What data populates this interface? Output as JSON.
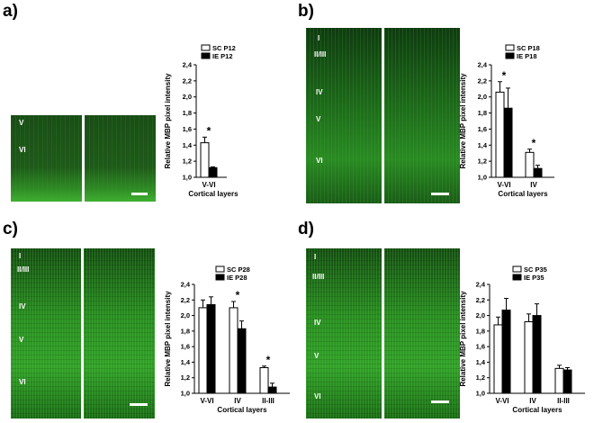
{
  "panels": [
    {
      "letter": "a)",
      "layers": [
        "V",
        "VI"
      ],
      "chart_data": {
        "type": "bar",
        "ylabel": "Relative MBP pixel intensity",
        "xlabel": "Cortical layers",
        "categories": [
          "V-VI"
        ],
        "ylim": [
          1.0,
          2.4
        ],
        "yticks": [
          "1,0",
          "1,2",
          "1,4",
          "1,6",
          "1,8",
          "2,0",
          "2,2",
          "2,4"
        ],
        "series": [
          {
            "name": "SC P12",
            "values": [
              1.43
            ],
            "errors": [
              0.07
            ],
            "color": "#ffffff"
          },
          {
            "name": "IE P12",
            "values": [
              1.12
            ],
            "errors": [
              0.01
            ],
            "color": "#000000"
          }
        ],
        "significance": [
          "*"
        ],
        "legend": "top"
      }
    },
    {
      "letter": "b)",
      "layers": [
        "I",
        "II/III",
        "IV",
        "V",
        "VI"
      ],
      "chart_data": {
        "type": "bar",
        "ylabel": "Relative MBP pixel intensity",
        "xlabel": "Cortical layers",
        "categories": [
          "V-VI",
          "IV"
        ],
        "ylim": [
          1.0,
          2.4
        ],
        "yticks": [
          "1,0",
          "1,2",
          "1,4",
          "1,6",
          "1,8",
          "2,0",
          "2,2",
          "2,4"
        ],
        "series": [
          {
            "name": "SC P18",
            "values": [
              2.06,
              1.31
            ],
            "errors": [
              0.13,
              0.04
            ],
            "color": "#ffffff"
          },
          {
            "name": "IE P18",
            "values": [
              1.86,
              1.11
            ],
            "errors": [
              0.25,
              0.04
            ],
            "color": "#000000"
          }
        ],
        "significance": [
          "*",
          "*"
        ],
        "legend": "top"
      }
    },
    {
      "letter": "c)",
      "layers": [
        "I",
        "II/III",
        "IV",
        "V",
        "VI"
      ],
      "chart_data": {
        "type": "bar",
        "ylabel": "Relative MBP pixel intensity",
        "xlabel": "Cortical layers",
        "categories": [
          "V-VI",
          "IV",
          "II-III"
        ],
        "ylim": [
          1.0,
          2.4
        ],
        "yticks": [
          "1,0",
          "1,2",
          "1,4",
          "1,6",
          "1,8",
          "2,0",
          "2,2",
          "2,4"
        ],
        "series": [
          {
            "name": "SC P28",
            "values": [
              2.1,
              2.1,
              1.33
            ],
            "errors": [
              0.1,
              0.08,
              0.02
            ],
            "color": "#ffffff"
          },
          {
            "name": "IE P28",
            "values": [
              2.14,
              1.83,
              1.08
            ],
            "errors": [
              0.1,
              0.1,
              0.05
            ],
            "color": "#000000"
          }
        ],
        "significance": [
          "",
          "*",
          "*"
        ],
        "legend": "top"
      }
    },
    {
      "letter": "d)",
      "layers": [
        "I",
        "II/III",
        "IV",
        "V",
        "VI"
      ],
      "chart_data": {
        "type": "bar",
        "ylabel": "Relative MBP pixel intensity",
        "xlabel": "Cortical layers",
        "categories": [
          "V-VI",
          "IV",
          "II-III"
        ],
        "ylim": [
          1.0,
          2.4
        ],
        "yticks": [
          "1,0",
          "1,2",
          "1,4",
          "1,6",
          "1,8",
          "2,0",
          "2,2",
          "2,4"
        ],
        "series": [
          {
            "name": "SC P35",
            "values": [
              1.88,
              1.92,
              1.32
            ],
            "errors": [
              0.1,
              0.1,
              0.04
            ],
            "color": "#ffffff"
          },
          {
            "name": "IE P35",
            "values": [
              2.07,
              2.0,
              1.3
            ],
            "errors": [
              0.15,
              0.15,
              0.03
            ],
            "color": "#000000"
          }
        ],
        "significance": [
          "",
          "",
          ""
        ],
        "legend": "top"
      }
    }
  ]
}
